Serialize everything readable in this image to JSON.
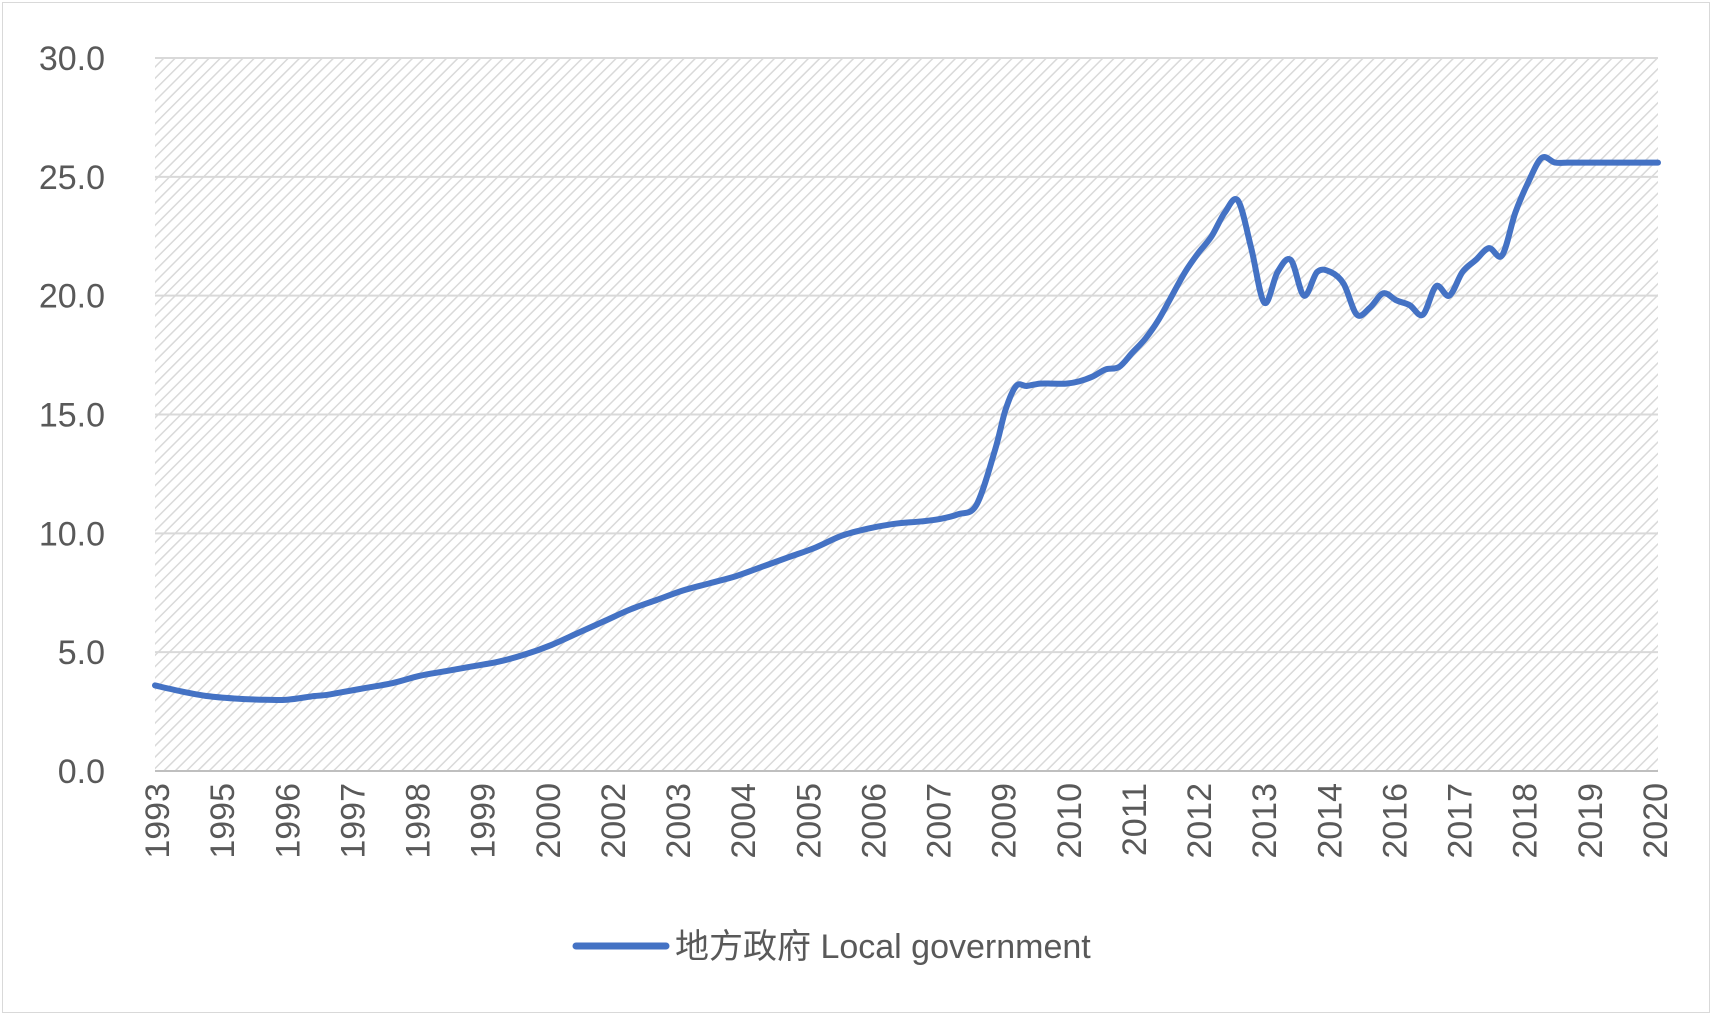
{
  "chart_data": {
    "type": "line",
    "title": "",
    "xlabel": "",
    "ylabel": "",
    "ylim": [
      0,
      30
    ],
    "y_ticks": [
      "0.0",
      "5.0",
      "10.0",
      "15.0",
      "20.0",
      "25.0",
      "30.0"
    ],
    "x_tick_labels": [
      "1993",
      "1995",
      "1996",
      "1997",
      "1998",
      "1999",
      "2000",
      "2002",
      "2003",
      "2004",
      "2005",
      "2006",
      "2007",
      "2009",
      "2010",
      "2011",
      "2012",
      "2013",
      "2014",
      "2016",
      "2017",
      "2018",
      "2019",
      "2020"
    ],
    "grid": true,
    "plot_background": "diagonal hatch",
    "legend_position": "bottom",
    "series": [
      {
        "name": "地方政府 Local government",
        "color": "#4472c4",
        "x": [
          1993.0,
          1993.5,
          1994.0,
          1994.5,
          1995.0,
          1995.5,
          1996.0,
          1996.25,
          1996.5,
          1997.0,
          1997.5,
          1998.0,
          1998.5,
          1999.0,
          1999.5,
          2000.0,
          2000.5,
          2001.0,
          2001.5,
          2002.0,
          2002.5,
          2003.0,
          2003.5,
          2004.0,
          2004.5,
          2005.0,
          2005.5,
          2006.0,
          2006.5,
          2007.0,
          2007.5,
          2007.85,
          2008.2,
          2008.55,
          2008.9,
          2009.1,
          2009.3,
          2009.5,
          2009.75,
          2010.0,
          2010.25,
          2010.5,
          2010.75,
          2011.0,
          2011.25,
          2011.5,
          2011.75,
          2012.0,
          2012.25,
          2012.5,
          2012.75,
          2013.0,
          2013.25,
          2013.5,
          2013.75,
          2014.0,
          2014.25,
          2014.5,
          2014.75,
          2015.0,
          2015.25,
          2015.5,
          2015.75,
          2016.0,
          2016.25,
          2016.5,
          2016.75,
          2017.0,
          2017.25,
          2017.5,
          2017.75,
          2018.0,
          2018.25,
          2018.5,
          2018.75,
          2019.0,
          2019.25,
          2019.5,
          2019.75,
          2020.0,
          2020.25,
          2020.5,
          2020.75,
          2021.0,
          2021.25,
          2021.45
        ],
        "values": [
          3.6,
          3.35,
          3.15,
          3.05,
          3.0,
          3.0,
          3.15,
          3.2,
          3.3,
          3.5,
          3.7,
          4.0,
          4.2,
          4.4,
          4.6,
          4.9,
          5.3,
          5.8,
          6.3,
          6.8,
          7.2,
          7.6,
          7.9,
          8.2,
          8.6,
          9.0,
          9.4,
          9.9,
          10.2,
          10.4,
          10.5,
          10.6,
          10.8,
          11.2,
          13.5,
          15.2,
          16.2,
          16.2,
          16.3,
          16.3,
          16.3,
          16.4,
          16.6,
          16.9,
          17.0,
          17.6,
          18.2,
          19.0,
          20.0,
          21.0,
          21.8,
          22.5,
          23.5,
          24.0,
          22.0,
          19.7,
          21.0,
          21.5,
          20.0,
          21.0,
          21.0,
          20.5,
          19.2,
          19.5,
          20.1,
          19.8,
          19.6,
          19.2,
          20.4,
          20.0,
          21.0,
          21.5,
          22.0,
          21.7,
          23.5,
          24.8,
          25.8,
          25.6,
          25.6,
          25.6,
          25.6,
          25.6,
          25.6,
          25.6,
          25.6,
          25.6
        ]
      }
    ]
  }
}
